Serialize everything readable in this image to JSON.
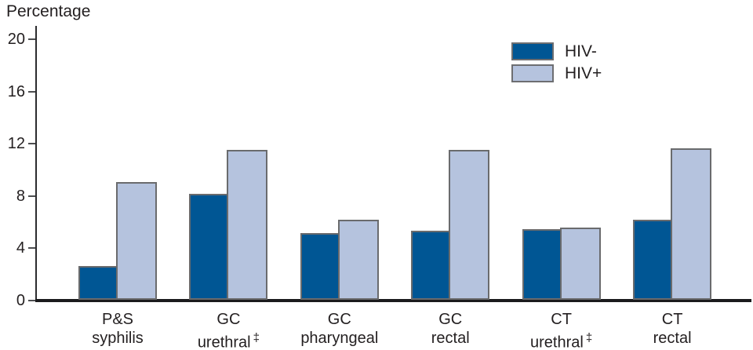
{
  "y_axis_title": "Percentage",
  "colors": {
    "hiv_negative_bar": "#005694",
    "hiv_positive_bar": "#b5c3de",
    "bar_border": "#6a6b6d",
    "axis": "#231f20"
  },
  "chart_data": {
    "type": "bar",
    "title": "",
    "xlabel": "",
    "ylabel": "Percentage",
    "ylim": [
      0,
      20
    ],
    "yticks": [
      0,
      4,
      8,
      12,
      16,
      20
    ],
    "grid": false,
    "legend_position": "top-right",
    "categories": [
      "P&S syphilis",
      "GC urethral ‡",
      "GC pharyngeal",
      "GC rectal",
      "CT urethral ‡",
      "CT rectal"
    ],
    "category_lines": [
      {
        "line1": "P&S",
        "line2": "syphilis",
        "sup": ""
      },
      {
        "line1": "GC",
        "line2": "urethral",
        "sup": "‡"
      },
      {
        "line1": "GC",
        "line2": "pharyngeal",
        "sup": ""
      },
      {
        "line1": "GC",
        "line2": "rectal",
        "sup": ""
      },
      {
        "line1": "CT",
        "line2": "urethral",
        "sup": "‡"
      },
      {
        "line1": "CT",
        "line2": "rectal",
        "sup": ""
      }
    ],
    "series": [
      {
        "name": "HIV-",
        "color": "#005694",
        "values": [
          2.6,
          8.1,
          5.1,
          5.3,
          5.4,
          6.1
        ]
      },
      {
        "name": "HIV+",
        "color": "#b5c3de",
        "values": [
          9.0,
          11.5,
          6.1,
          11.5,
          5.5,
          11.6
        ]
      }
    ]
  }
}
